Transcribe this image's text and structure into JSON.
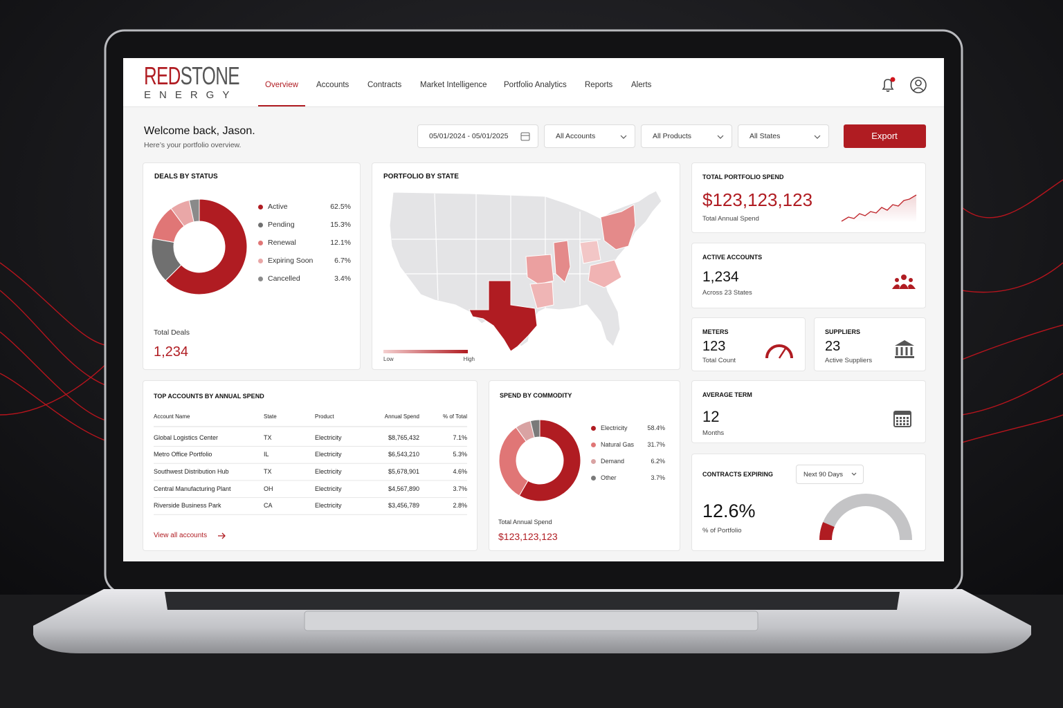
{
  "brand": {
    "primary": "RED",
    "secondary": "STONE",
    "tagline": "ENERGY"
  },
  "nav": {
    "items": [
      "Overview",
      "Accounts",
      "Contracts",
      "Market Intelligence",
      "Portfolio Analytics",
      "Reports",
      "Alerts"
    ],
    "active": 0
  },
  "header": {
    "greeting": "Welcome back, Jason.",
    "subtitle": "Here’s your portfolio overview."
  },
  "filters": {
    "date_range": "05/01/2024 - 05/01/2025",
    "accounts": "All Accounts",
    "products": "All Products",
    "states": "All States",
    "export": "Export"
  },
  "deals_by_status": {
    "title": "DEALS BY STATUS",
    "type": "pie",
    "categories": [
      "Active",
      "Pending",
      "Renewal",
      "Expiring Soon",
      "Cancelled"
    ],
    "values": [
      62.5,
      15.3,
      12.1,
      6.7,
      3.4
    ],
    "value_labels": [
      "62.5%",
      "15.3%",
      "12.1%",
      "6.7%",
      "3.4%"
    ],
    "colors": [
      "#b01c22",
      "#707070",
      "#e07676",
      "#e9a7a7",
      "#8a8a8a"
    ],
    "total_label": "Total Deals",
    "total": "1,234"
  },
  "portfolio_by_state": {
    "title": "PORTFOLIO BY STATE",
    "legend_low": "Low",
    "legend_high": "High"
  },
  "total_spend": {
    "title": "TOTAL PORTFOLIO SPEND",
    "value": "$123,123,123",
    "caption": "Total Annual Spend"
  },
  "active_accounts": {
    "title": "ACTIVE ACCOUNTS",
    "value": "1,234",
    "caption": "Across 23 States"
  },
  "meters": {
    "title": "METERS",
    "value": "123",
    "caption": "Total Count"
  },
  "suppliers": {
    "title": "SUPPLIERS",
    "value": "23",
    "caption": "Active Suppliers"
  },
  "average_term": {
    "title": "AVERAGE TERM",
    "value": "12",
    "caption": "Months"
  },
  "contracts_expiring": {
    "title": "CONTRACTS EXPIRING",
    "period": "Next 90 Days",
    "value": 12.6,
    "value_label": "12.6%",
    "caption": "% of Portfolio"
  },
  "top_accounts": {
    "title": "TOP ACCOUNTS BY ANNUAL SPEND",
    "columns": [
      "Account Name",
      "State",
      "Product",
      "Annual Spend",
      "% of Total"
    ],
    "rows": [
      [
        "Global Logistics Center",
        "TX",
        "Electricity",
        "$8,765,432",
        "7.1%"
      ],
      [
        "Metro Office Portfolio",
        "IL",
        "Electricity",
        "$6,543,210",
        "5.3%"
      ],
      [
        "Southwest Distribution Hub",
        "TX",
        "Electricity",
        "$5,678,901",
        "4.6%"
      ],
      [
        "Central Manufacturing Plant",
        "OH",
        "Electricity",
        "$4,567,890",
        "3.7%"
      ],
      [
        "Riverside Business Park",
        "CA",
        "Electricity",
        "$3,456,789",
        "2.8%"
      ]
    ],
    "link": "View all accounts"
  },
  "spend_by_commodity": {
    "title": "SPEND BY COMMODITY",
    "type": "pie",
    "categories": [
      "Electricity",
      "Natural Gas",
      "Demand",
      "Other"
    ],
    "values": [
      58.4,
      31.7,
      6.2,
      3.7
    ],
    "value_labels": [
      "58.4%",
      "31.7%",
      "6.2%",
      "3.7%"
    ],
    "colors": [
      "#b01c22",
      "#e07676",
      "#d9a3a3",
      "#7a7a7a"
    ],
    "total_label": "Total Annual Spend",
    "total": "$123,123,123"
  }
}
